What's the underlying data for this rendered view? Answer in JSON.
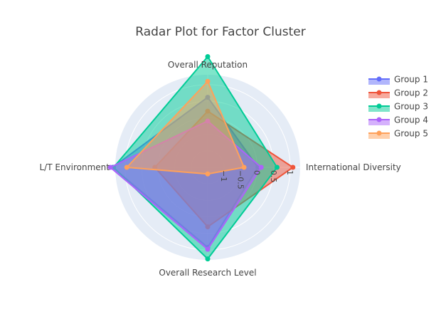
{
  "chart_data": {
    "type": "radar",
    "title": "Radar Plot for Factor Cluster",
    "axes": [
      "International Diversity",
      "Overall Reputation",
      "L/T Environment",
      "Overall Research Level"
    ],
    "radial_range": [
      -1.5,
      1.3
    ],
    "radial_ticks": [
      -1,
      -0.5,
      0,
      0.5,
      1
    ],
    "radial_tick_labels": [
      "−1",
      "−0.5",
      "0",
      "0.5",
      "1"
    ],
    "grid": true,
    "legend_position": "top-right",
    "series": [
      {
        "name": "Group 1",
        "color": "#636efa",
        "values": [
          0.02,
          0.62,
          1.38,
          0.92
        ]
      },
      {
        "name": "Group 2",
        "color": "#ef553b",
        "values": [
          1.08,
          0.2,
          0.1,
          0.3
        ]
      },
      {
        "name": "Group 3",
        "color": "#00cc96",
        "values": [
          0.6,
          1.85,
          1.35,
          1.27
        ]
      },
      {
        "name": "Group 4",
        "color": "#ab63fa",
        "values": [
          0.12,
          -0.1,
          1.45,
          0.98
        ]
      },
      {
        "name": "Group 5",
        "color": "#ffa15a",
        "values": [
          -0.4,
          1.1,
          0.95,
          -1.3
        ]
      }
    ]
  }
}
